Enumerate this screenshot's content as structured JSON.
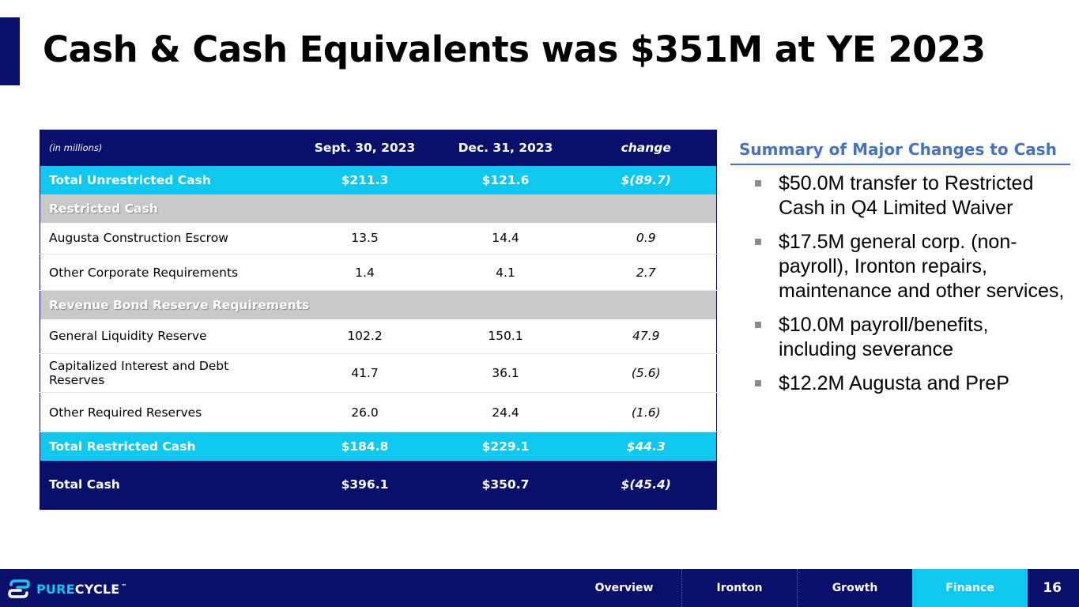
{
  "title": "Cash & Cash Equivalents was $351M at YE 2023",
  "table": {
    "units": "(in millions)",
    "columns": [
      "Sept. 30, 2023",
      "Dec. 31, 2023",
      "change"
    ],
    "total_unrestricted": {
      "label": "Total Unrestricted Cash",
      "values": [
        "$211.3",
        "$121.6",
        "$(89.7)"
      ]
    },
    "restricted_header": "Restricted Cash",
    "restricted_rows": [
      {
        "label": "Augusta Construction Escrow",
        "values": [
          "13.5",
          "14.4",
          "0.9"
        ]
      },
      {
        "label": "Other Corporate Requirements",
        "values": [
          "1.4",
          "4.1",
          "2.7"
        ]
      }
    ],
    "revenue_bond_header": "Revenue Bond Reserve Requirements",
    "revenue_bond_rows": [
      {
        "label": "General Liquidity Reserve",
        "values": [
          "102.2",
          "150.1",
          "47.9"
        ]
      },
      {
        "label": "Capitalized Interest and Debt Reserves",
        "values": [
          "41.7",
          "36.1",
          "(5.6)"
        ]
      },
      {
        "label": "Other Required Reserves",
        "values": [
          "26.0",
          "24.4",
          "(1.6)"
        ]
      }
    ],
    "total_restricted": {
      "label": "Total Restricted Cash",
      "values": [
        "$184.8",
        "$229.1",
        "$44.3"
      ]
    },
    "total_cash": {
      "label": "Total Cash",
      "values": [
        "$396.1",
        "$350.7",
        "$(45.4)"
      ]
    }
  },
  "summary": {
    "title": "Summary of Major Changes to Cash",
    "bullets": [
      "$50.0M transfer to Restricted Cash in Q4 Limited Waiver",
      "$17.5M general corp. (non-payroll), Ironton repairs, maintenance and other services,",
      "$10.0M payroll/benefits, including severance",
      "$12.2M Augusta and PreP"
    ]
  },
  "footer": {
    "logo_pure": "PURE",
    "logo_cycle": "CYCLE",
    "logo_tm": "™",
    "tabs": [
      "Overview",
      "Ironton",
      "Growth",
      "Finance"
    ],
    "active_tab": "Finance",
    "page_number": "16"
  },
  "colors": {
    "navy": "#0a0f6b",
    "cyan": "#0fc8f0",
    "summary_blue": "#4472c4",
    "section_gray": "#c9c9c9"
  },
  "icons": {
    "logo_mark": "purecycle-logo-icon",
    "bullet": "square-bullet-icon"
  }
}
